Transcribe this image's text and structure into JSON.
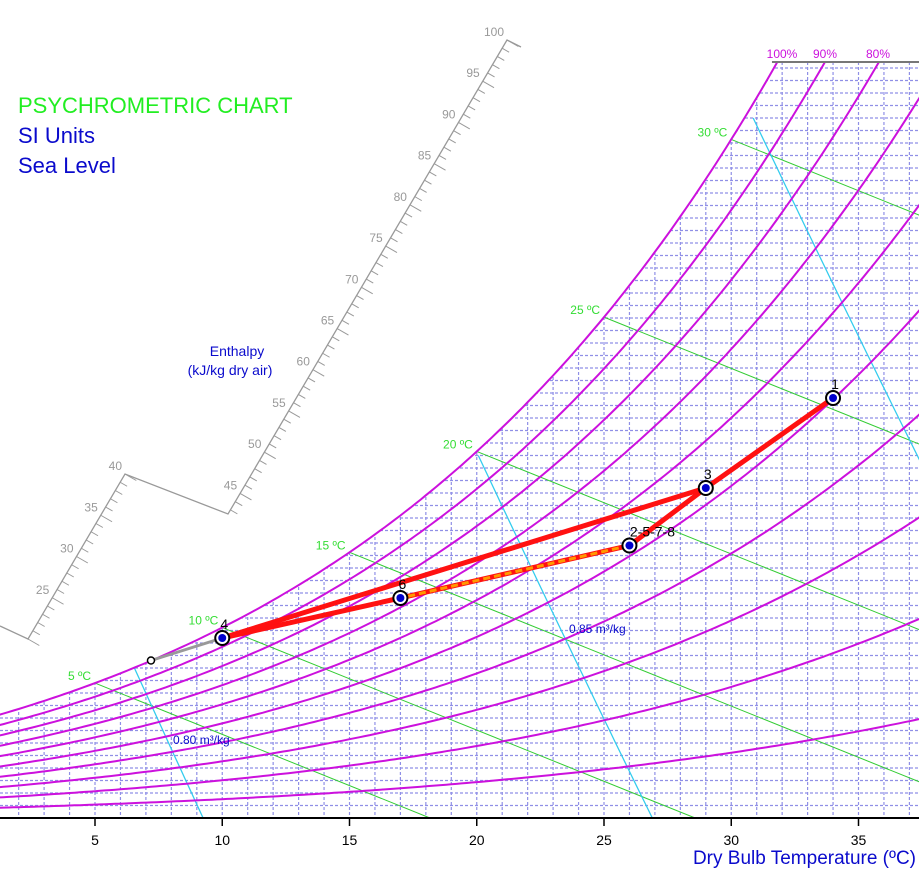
{
  "header": {
    "title": "PSYCHROMETRIC CHART",
    "units": "SI Units",
    "altitude": "Sea Level"
  },
  "enthalpy_axis": {
    "label_line1": "Enthalpy",
    "label_line2": "(kJ/kg dry air)",
    "ticks": [
      25,
      30,
      35,
      40,
      45,
      50,
      55,
      60,
      65,
      70,
      75,
      80,
      85,
      90,
      95,
      100
    ]
  },
  "colors": {
    "saturation": "#cc11dd",
    "wet_bulb": "#33cc33",
    "volume": "#33ccee",
    "grid": "#8f8fe6",
    "process": "#ff1111",
    "dashed_process": "#ff9900",
    "label_blue": "#0a0acc",
    "enthalpy_scale": "#999999"
  },
  "chart_data": {
    "type": "line",
    "title": "PSYCHROMETRIC CHART",
    "xlabel": "Dry Bulb Temperature (ºC)",
    "ylabel": "",
    "xlim": [
      1.3,
      37.4
    ],
    "ylim": [
      0,
      0.0302
    ],
    "x_ticks": [
      5,
      10,
      15,
      20,
      25,
      30,
      35
    ],
    "pressure_kpa": 101.325,
    "rh_curves": [
      100,
      90,
      80,
      70,
      60,
      50,
      40,
      30,
      20,
      10
    ],
    "rh_labels": [
      "100%",
      "90%",
      "80%"
    ],
    "wet_bulb_lines": [
      {
        "t": 5,
        "label": "5 ºC"
      },
      {
        "t": 10,
        "label": "10 ºC"
      },
      {
        "t": 15,
        "label": "15 ºC"
      },
      {
        "t": 20,
        "label": "20 ºC"
      },
      {
        "t": 25,
        "label": "25 ºC"
      },
      {
        "t": 30,
        "label": "30 ºC"
      }
    ],
    "volume_lines": [
      {
        "v": 0.8,
        "label": "0.80 m³/kg"
      },
      {
        "v": 0.85,
        "label": "0.85 m³/kg"
      },
      {
        "v": 0.9,
        "label": ""
      }
    ],
    "points": [
      {
        "label": "1",
        "t": 34,
        "w": 0.0168
      },
      {
        "label": "3",
        "t": 29,
        "w": 0.0132
      },
      {
        "label": "2-5-7-8",
        "t": 26,
        "w": 0.0109
      },
      {
        "label": "6",
        "t": 17,
        "w": 0.0088
      },
      {
        "label": "4",
        "t": 10,
        "w": 0.0072
      },
      {
        "label": "",
        "t": 7.2,
        "w": 0.0063
      }
    ],
    "processes": [
      {
        "from": 0,
        "to": 1,
        "style": "solid"
      },
      {
        "from": 1,
        "to": 2,
        "style": "solid"
      },
      {
        "from": 2,
        "to": 3,
        "style": "dashed"
      },
      {
        "from": 3,
        "to": 4,
        "style": "solid"
      },
      {
        "from": 4,
        "to": 1,
        "style": "solid"
      },
      {
        "from": 4,
        "to": 5,
        "style": "gray"
      }
    ]
  },
  "axis": {
    "xlabel": "Dry Bulb Temperature (ºC)"
  }
}
